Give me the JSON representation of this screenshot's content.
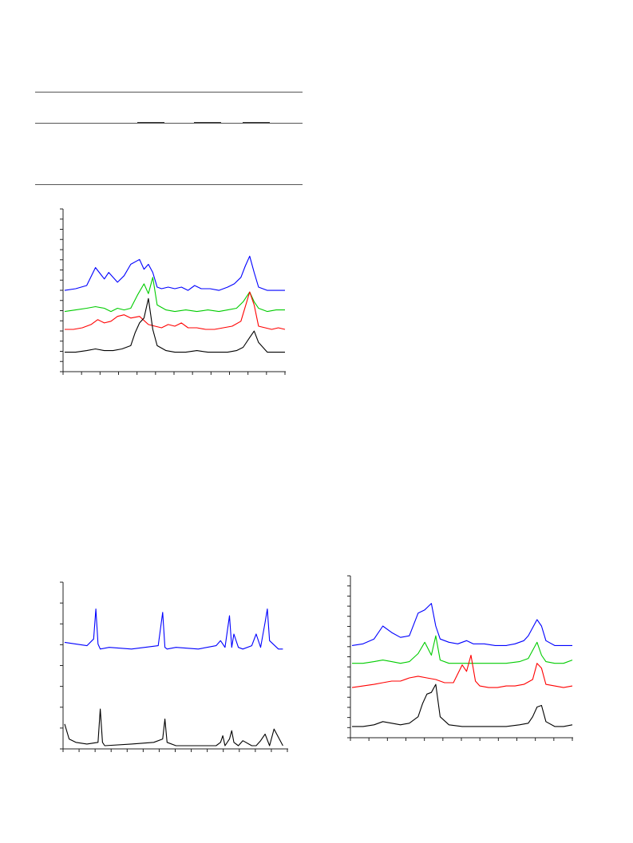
{
  "chart_data": [
    {
      "type": "line",
      "title": "",
      "xlabel": "",
      "ylabel": "",
      "grid": false,
      "legend": "none",
      "x_range": [
        0,
        1
      ],
      "offsets": [
        0.47,
        0.35,
        0.24,
        0.1
      ],
      "series": [
        {
          "color": "#0000ff",
          "x": [
            0,
            0.05,
            0.1,
            0.14,
            0.18,
            0.2,
            0.24,
            0.27,
            0.3,
            0.34,
            0.36,
            0.38,
            0.4,
            0.42,
            0.44,
            0.47,
            0.5,
            0.53,
            0.56,
            0.59,
            0.62,
            0.66,
            0.7,
            0.74,
            0.77,
            0.8,
            0.82,
            0.84,
            0.86,
            0.88,
            0.92,
            0.96,
            1.0
          ],
          "y": [
            0.01,
            0.02,
            0.04,
            0.15,
            0.08,
            0.12,
            0.06,
            0.1,
            0.17,
            0.2,
            0.14,
            0.17,
            0.12,
            0.03,
            0.02,
            0.03,
            0.02,
            0.03,
            0.01,
            0.04,
            0.02,
            0.02,
            0.01,
            0.03,
            0.05,
            0.09,
            0.16,
            0.22,
            0.12,
            0.03,
            0.01,
            0.01,
            0.01
          ]
        },
        {
          "color": "#00cc00",
          "x": [
            0,
            0.05,
            0.1,
            0.14,
            0.18,
            0.21,
            0.24,
            0.27,
            0.3,
            0.33,
            0.36,
            0.38,
            0.4,
            0.42,
            0.46,
            0.5,
            0.55,
            0.6,
            0.65,
            0.7,
            0.74,
            0.78,
            0.81,
            0.84,
            0.86,
            0.88,
            0.92,
            0.96,
            1.0
          ],
          "y": [
            0.0,
            0.01,
            0.02,
            0.03,
            0.02,
            0.0,
            0.02,
            0.01,
            0.02,
            0.1,
            0.17,
            0.11,
            0.21,
            0.04,
            0.01,
            0.0,
            0.01,
            0.0,
            0.01,
            0.0,
            0.01,
            0.02,
            0.06,
            0.12,
            0.06,
            0.02,
            0.0,
            0.01,
            0.01
          ]
        },
        {
          "color": "#ff0000",
          "x": [
            0,
            0.04,
            0.08,
            0.12,
            0.15,
            0.18,
            0.21,
            0.24,
            0.27,
            0.3,
            0.34,
            0.38,
            0.41,
            0.44,
            0.47,
            0.5,
            0.53,
            0.56,
            0.6,
            0.64,
            0.68,
            0.72,
            0.76,
            0.8,
            0.84,
            0.86,
            0.88,
            0.91,
            0.94,
            0.97,
            1.0
          ],
          "y": [
            0.0,
            0.0,
            0.01,
            0.03,
            0.06,
            0.04,
            0.05,
            0.08,
            0.09,
            0.07,
            0.08,
            0.03,
            0.02,
            0.01,
            0.03,
            0.02,
            0.04,
            0.01,
            0.01,
            0.0,
            0.0,
            0.01,
            0.02,
            0.05,
            0.23,
            0.15,
            0.02,
            0.01,
            0.0,
            0.01,
            0.0
          ]
        },
        {
          "color": "#000000",
          "x": [
            0,
            0.05,
            0.1,
            0.14,
            0.18,
            0.22,
            0.26,
            0.3,
            0.32,
            0.34,
            0.36,
            0.38,
            0.4,
            0.42,
            0.46,
            0.5,
            0.55,
            0.6,
            0.65,
            0.7,
            0.74,
            0.78,
            0.81,
            0.84,
            0.86,
            0.88,
            0.92,
            0.96,
            1.0
          ],
          "y": [
            0.0,
            0.0,
            0.01,
            0.02,
            0.01,
            0.01,
            0.02,
            0.04,
            0.12,
            0.18,
            0.21,
            0.33,
            0.14,
            0.04,
            0.01,
            0.0,
            0.0,
            0.01,
            0.0,
            0.0,
            0.0,
            0.01,
            0.03,
            0.09,
            0.13,
            0.06,
            0.0,
            0.0,
            0.0
          ]
        }
      ]
    },
    {
      "type": "line",
      "title": "",
      "xlabel": "",
      "ylabel": "",
      "grid": false,
      "legend": "none",
      "x_range": [
        0,
        1
      ],
      "offsets": [
        0.58,
        0.0
      ],
      "series": [
        {
          "color": "#0000ff",
          "x": [
            0,
            0.1,
            0.13,
            0.14,
            0.15,
            0.16,
            0.2,
            0.3,
            0.42,
            0.44,
            0.45,
            0.46,
            0.5,
            0.6,
            0.68,
            0.7,
            0.72,
            0.74,
            0.75,
            0.76,
            0.78,
            0.8,
            0.84,
            0.86,
            0.88,
            0.9,
            0.91,
            0.92,
            0.96,
            0.98
          ],
          "y": [
            0.04,
            0.02,
            0.06,
            0.24,
            0.03,
            0.0,
            0.01,
            0.0,
            0.02,
            0.22,
            0.01,
            0.0,
            0.01,
            0.0,
            0.02,
            0.05,
            0.01,
            0.2,
            0.01,
            0.09,
            0.01,
            0.0,
            0.02,
            0.09,
            0.01,
            0.16,
            0.24,
            0.05,
            0.0,
            0.0
          ]
        },
        {
          "color": "#000000",
          "x": [
            0,
            0.02,
            0.05,
            0.1,
            0.15,
            0.16,
            0.17,
            0.18,
            0.3,
            0.4,
            0.44,
            0.45,
            0.46,
            0.5,
            0.6,
            0.68,
            0.7,
            0.71,
            0.72,
            0.74,
            0.75,
            0.76,
            0.78,
            0.8,
            0.84,
            0.86,
            0.88,
            0.9,
            0.92,
            0.94,
            0.98
          ],
          "y": [
            0.13,
            0.04,
            0.02,
            0.01,
            0.02,
            0.22,
            0.02,
            0.0,
            0.01,
            0.02,
            0.04,
            0.16,
            0.02,
            0.0,
            0.0,
            0.0,
            0.02,
            0.06,
            0.0,
            0.04,
            0.09,
            0.02,
            0.0,
            0.03,
            0.0,
            0.0,
            0.03,
            0.07,
            0.0,
            0.1,
            0.0
          ]
        }
      ]
    },
    {
      "type": "line",
      "title": "",
      "xlabel": "",
      "ylabel": "",
      "grid": false,
      "legend": "none",
      "x_range": [
        0,
        1
      ],
      "offsets": [
        0.55,
        0.44,
        0.29,
        0.05
      ],
      "series": [
        {
          "color": "#0000ff",
          "x": [
            0,
            0.05,
            0.1,
            0.14,
            0.18,
            0.22,
            0.26,
            0.3,
            0.33,
            0.36,
            0.38,
            0.4,
            0.44,
            0.48,
            0.52,
            0.55,
            0.6,
            0.65,
            0.7,
            0.74,
            0.78,
            0.8,
            0.84,
            0.86,
            0.88,
            0.92,
            0.96,
            1.0
          ],
          "y": [
            0.0,
            0.01,
            0.04,
            0.12,
            0.08,
            0.05,
            0.06,
            0.2,
            0.22,
            0.26,
            0.12,
            0.04,
            0.02,
            0.01,
            0.03,
            0.01,
            0.01,
            0.0,
            0.0,
            0.01,
            0.03,
            0.06,
            0.16,
            0.12,
            0.03,
            0.0,
            0.0,
            0.0
          ]
        },
        {
          "color": "#00cc00",
          "x": [
            0,
            0.05,
            0.1,
            0.14,
            0.18,
            0.22,
            0.26,
            0.3,
            0.33,
            0.36,
            0.38,
            0.4,
            0.44,
            0.5,
            0.6,
            0.7,
            0.76,
            0.8,
            0.84,
            0.86,
            0.88,
            0.92,
            0.96,
            1.0
          ],
          "y": [
            0.0,
            0.0,
            0.01,
            0.02,
            0.01,
            0.0,
            0.01,
            0.06,
            0.13,
            0.05,
            0.17,
            0.02,
            0.0,
            0.0,
            0.0,
            0.0,
            0.01,
            0.03,
            0.13,
            0.05,
            0.01,
            0.0,
            0.0,
            0.02
          ]
        },
        {
          "color": "#ff0000",
          "x": [
            0,
            0.05,
            0.1,
            0.14,
            0.18,
            0.22,
            0.26,
            0.3,
            0.34,
            0.38,
            0.42,
            0.46,
            0.5,
            0.52,
            0.54,
            0.56,
            0.58,
            0.62,
            0.66,
            0.7,
            0.74,
            0.78,
            0.82,
            0.84,
            0.86,
            0.88,
            0.92,
            0.96,
            1.0
          ],
          "y": [
            0.0,
            0.01,
            0.02,
            0.03,
            0.04,
            0.04,
            0.06,
            0.07,
            0.06,
            0.05,
            0.03,
            0.03,
            0.14,
            0.1,
            0.2,
            0.04,
            0.01,
            0.0,
            0.0,
            0.01,
            0.01,
            0.02,
            0.05,
            0.15,
            0.12,
            0.02,
            0.01,
            0.0,
            0.01
          ]
        },
        {
          "color": "#000000",
          "x": [
            0,
            0.05,
            0.1,
            0.14,
            0.18,
            0.22,
            0.26,
            0.3,
            0.32,
            0.34,
            0.36,
            0.38,
            0.4,
            0.44,
            0.5,
            0.6,
            0.7,
            0.76,
            0.8,
            0.82,
            0.84,
            0.86,
            0.88,
            0.92,
            0.96,
            1.0
          ],
          "y": [
            0.0,
            0.0,
            0.01,
            0.03,
            0.02,
            0.01,
            0.02,
            0.06,
            0.14,
            0.2,
            0.21,
            0.26,
            0.06,
            0.01,
            0.0,
            0.0,
            0.0,
            0.01,
            0.02,
            0.06,
            0.12,
            0.13,
            0.03,
            0.0,
            0.0,
            0.01
          ]
        }
      ]
    }
  ]
}
